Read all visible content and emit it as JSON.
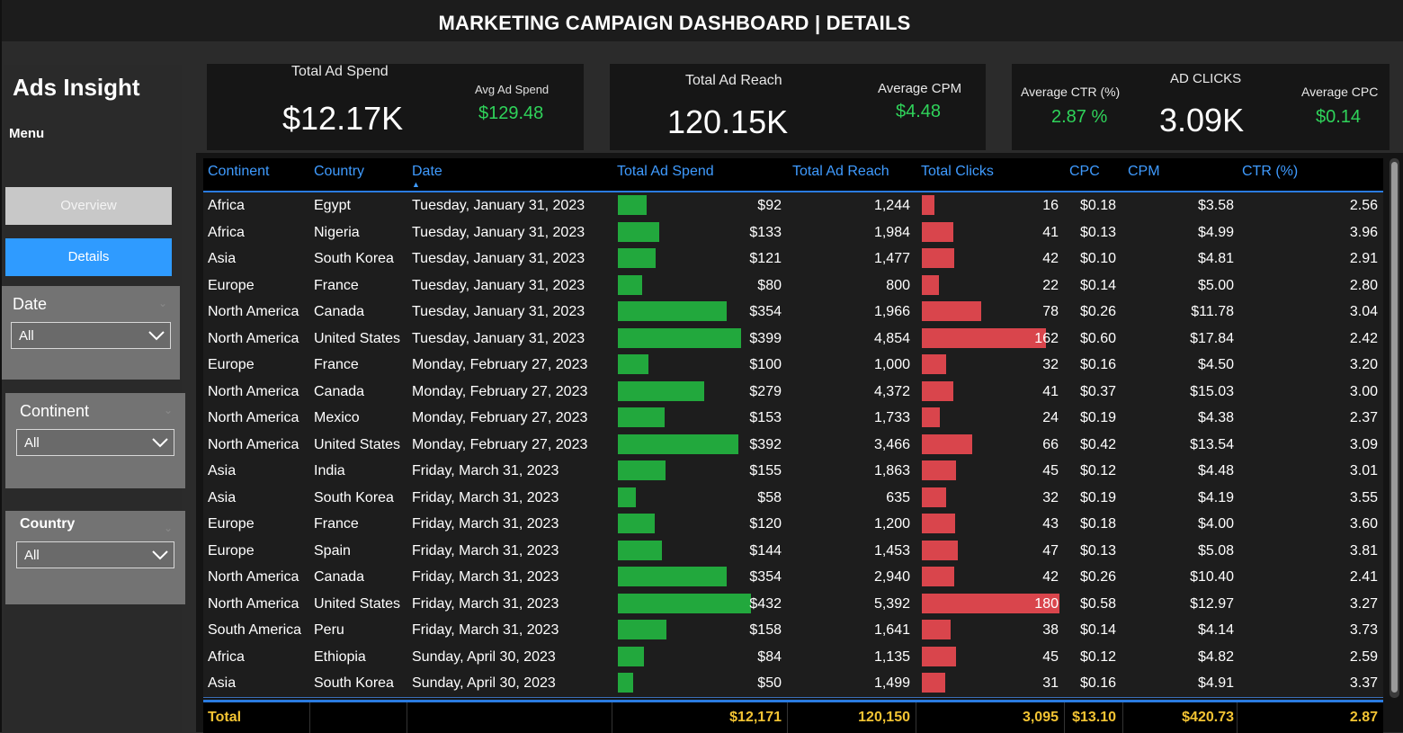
{
  "header": {
    "title": "MARKETING CAMPAIGN DASHBOARD | DETAILS"
  },
  "sidebar": {
    "brand": "Ads Insight",
    "menu_label": "Menu",
    "nav": {
      "overview": "Overview",
      "details": "Details"
    },
    "slicers": {
      "date": {
        "label": "Date",
        "value": "All"
      },
      "continent": {
        "label": "Continent",
        "value": "All"
      },
      "country": {
        "label": "Country",
        "value": "All"
      }
    }
  },
  "kpis": {
    "total_ad_spend": {
      "label": "Total Ad Spend",
      "value": "$12.17K"
    },
    "avg_ad_spend": {
      "label": "Avg Ad Spend",
      "value": "$129.48"
    },
    "total_ad_reach": {
      "label": "Total Ad Reach",
      "value": "120.15K"
    },
    "average_cpm": {
      "label": "Average CPM",
      "value": "$4.48"
    },
    "average_ctr": {
      "label": "Average CTR (%)",
      "value": "2.87 %"
    },
    "ad_clicks": {
      "label": "AD CLICKS",
      "value": "3.09K"
    },
    "average_cpc": {
      "label": "Average CPC",
      "value": "$0.14"
    }
  },
  "table": {
    "columns": [
      "Continent",
      "Country",
      "Date",
      "Total Ad Spend",
      "Total Ad Reach",
      "Total Clicks",
      "CPC",
      "CPM",
      "CTR (%)"
    ],
    "rows": [
      {
        "continent": "Africa",
        "country": "Egypt",
        "date": "Tuesday, January 31, 2023",
        "spend": "$92",
        "spend_v": 92,
        "reach": "1,244",
        "clicks": "16",
        "clicks_v": 16,
        "cpc": "$0.18",
        "cpm": "$3.58",
        "ctr": "2.56"
      },
      {
        "continent": "Africa",
        "country": "Nigeria",
        "date": "Tuesday, January 31, 2023",
        "spend": "$133",
        "spend_v": 133,
        "reach": "1,984",
        "clicks": "41",
        "clicks_v": 41,
        "cpc": "$0.13",
        "cpm": "$4.99",
        "ctr": "3.96"
      },
      {
        "continent": "Asia",
        "country": "South Korea",
        "date": "Tuesday, January 31, 2023",
        "spend": "$121",
        "spend_v": 121,
        "reach": "1,477",
        "clicks": "42",
        "clicks_v": 42,
        "cpc": "$0.10",
        "cpm": "$4.81",
        "ctr": "2.91"
      },
      {
        "continent": "Europe",
        "country": "France",
        "date": "Tuesday, January 31, 2023",
        "spend": "$80",
        "spend_v": 80,
        "reach": "800",
        "clicks": "22",
        "clicks_v": 22,
        "cpc": "$0.14",
        "cpm": "$5.00",
        "ctr": "2.80"
      },
      {
        "continent": "North America",
        "country": "Canada",
        "date": "Tuesday, January 31, 2023",
        "spend": "$354",
        "spend_v": 354,
        "reach": "1,966",
        "clicks": "78",
        "clicks_v": 78,
        "cpc": "$0.26",
        "cpm": "$11.78",
        "ctr": "3.04"
      },
      {
        "continent": "North America",
        "country": "United States",
        "date": "Tuesday, January 31, 2023",
        "spend": "$399",
        "spend_v": 399,
        "reach": "4,854",
        "clicks": "162",
        "clicks_v": 162,
        "cpc": "$0.60",
        "cpm": "$17.84",
        "ctr": "2.42"
      },
      {
        "continent": "Europe",
        "country": "France",
        "date": "Monday, February 27, 2023",
        "spend": "$100",
        "spend_v": 100,
        "reach": "1,000",
        "clicks": "32",
        "clicks_v": 32,
        "cpc": "$0.16",
        "cpm": "$4.50",
        "ctr": "3.20"
      },
      {
        "continent": "North America",
        "country": "Canada",
        "date": "Monday, February 27, 2023",
        "spend": "$279",
        "spend_v": 279,
        "reach": "4,372",
        "clicks": "41",
        "clicks_v": 41,
        "cpc": "$0.37",
        "cpm": "$15.03",
        "ctr": "3.00"
      },
      {
        "continent": "North America",
        "country": "Mexico",
        "date": "Monday, February 27, 2023",
        "spend": "$153",
        "spend_v": 153,
        "reach": "1,733",
        "clicks": "24",
        "clicks_v": 24,
        "cpc": "$0.19",
        "cpm": "$4.38",
        "ctr": "2.37"
      },
      {
        "continent": "North America",
        "country": "United States",
        "date": "Monday, February 27, 2023",
        "spend": "$392",
        "spend_v": 392,
        "reach": "3,466",
        "clicks": "66",
        "clicks_v": 66,
        "cpc": "$0.42",
        "cpm": "$13.54",
        "ctr": "3.09"
      },
      {
        "continent": "Asia",
        "country": "India",
        "date": "Friday, March 31, 2023",
        "spend": "$155",
        "spend_v": 155,
        "reach": "1,863",
        "clicks": "45",
        "clicks_v": 45,
        "cpc": "$0.12",
        "cpm": "$4.48",
        "ctr": "3.01"
      },
      {
        "continent": "Asia",
        "country": "South Korea",
        "date": "Friday, March 31, 2023",
        "spend": "$58",
        "spend_v": 58,
        "reach": "635",
        "clicks": "32",
        "clicks_v": 32,
        "cpc": "$0.19",
        "cpm": "$4.19",
        "ctr": "3.55"
      },
      {
        "continent": "Europe",
        "country": "France",
        "date": "Friday, March 31, 2023",
        "spend": "$120",
        "spend_v": 120,
        "reach": "1,200",
        "clicks": "43",
        "clicks_v": 43,
        "cpc": "$0.18",
        "cpm": "$4.00",
        "ctr": "3.60"
      },
      {
        "continent": "Europe",
        "country": "Spain",
        "date": "Friday, March 31, 2023",
        "spend": "$144",
        "spend_v": 144,
        "reach": "1,453",
        "clicks": "47",
        "clicks_v": 47,
        "cpc": "$0.13",
        "cpm": "$5.08",
        "ctr": "3.81"
      },
      {
        "continent": "North America",
        "country": "Canada",
        "date": "Friday, March 31, 2023",
        "spend": "$354",
        "spend_v": 354,
        "reach": "2,940",
        "clicks": "42",
        "clicks_v": 42,
        "cpc": "$0.26",
        "cpm": "$10.40",
        "ctr": "2.41"
      },
      {
        "continent": "North America",
        "country": "United States",
        "date": "Friday, March 31, 2023",
        "spend": "$432",
        "spend_v": 432,
        "reach": "5,392",
        "clicks": "180",
        "clicks_v": 180,
        "cpc": "$0.58",
        "cpm": "$12.97",
        "ctr": "3.27"
      },
      {
        "continent": "South America",
        "country": "Peru",
        "date": "Friday, March 31, 2023",
        "spend": "$158",
        "spend_v": 158,
        "reach": "1,641",
        "clicks": "38",
        "clicks_v": 38,
        "cpc": "$0.14",
        "cpm": "$4.14",
        "ctr": "3.73"
      },
      {
        "continent": "Africa",
        "country": "Ethiopia",
        "date": "Sunday, April 30, 2023",
        "spend": "$84",
        "spend_v": 84,
        "reach": "1,135",
        "clicks": "45",
        "clicks_v": 45,
        "cpc": "$0.12",
        "cpm": "$4.82",
        "ctr": "2.59"
      },
      {
        "continent": "Asia",
        "country": "South Korea",
        "date": "Sunday, April 30, 2023",
        "spend": "$50",
        "spend_v": 50,
        "reach": "1,499",
        "clicks": "31",
        "clicks_v": 31,
        "cpc": "$0.16",
        "cpm": "$4.91",
        "ctr": "3.37"
      }
    ],
    "totals": {
      "label": "Total",
      "spend": "$12,171",
      "reach": "120,150",
      "clicks": "3,095",
      "cpc": "$13.10",
      "cpm": "$420.73",
      "ctr": "2.87"
    }
  },
  "colors": {
    "spend_bar": "#22a83d",
    "click_bar": "#d9454c",
    "accent": "#2f9bff",
    "total": "#f3c433",
    "kpi_green": "#2fd35a"
  }
}
